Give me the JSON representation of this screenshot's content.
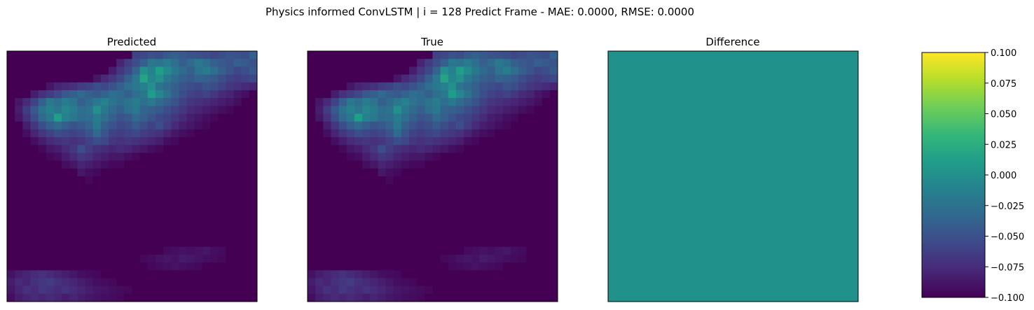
{
  "figure": {
    "suptitle": "Physics informed ConvLSTM | i = 128 Predict Frame - MAE: 0.0000, RMSE: 0.0000"
  },
  "colors": {
    "viridis": [
      "#440154",
      "#482878",
      "#3e4989",
      "#31688e",
      "#26828e",
      "#1f9e89",
      "#35b779",
      "#6ece58",
      "#b5de2b",
      "#fde725"
    ],
    "difference_fill": "#21918c"
  },
  "chart_data": [
    {
      "type": "heatmap",
      "title": "Predicted",
      "grid_size": [
        32,
        32
      ],
      "colormap": "viridis",
      "axis_ticks": false,
      "values_note": "",
      "cells": [
        [
          0,
          0,
          0,
          0,
          0,
          0,
          0,
          0,
          0,
          0,
          0,
          0,
          0,
          0,
          0,
          0,
          0.2,
          0.22,
          0.25,
          0.24,
          0.28,
          0.3,
          0.28,
          0.26,
          0.25,
          0.24,
          0.22,
          0.24,
          0.26,
          0.25,
          0.24,
          0.3
        ],
        [
          0,
          0,
          0,
          0,
          0,
          0,
          0,
          0,
          0,
          0,
          0,
          0,
          0,
          0,
          0.1,
          0.18,
          0.24,
          0.3,
          0.4,
          0.38,
          0.42,
          0.36,
          0.3,
          0.34,
          0.4,
          0.36,
          0.3,
          0.28,
          0.26,
          0.3,
          0.28,
          0.26
        ],
        [
          0,
          0,
          0,
          0,
          0,
          0,
          0,
          0,
          0,
          0,
          0,
          0,
          0,
          0.08,
          0.16,
          0.22,
          0.32,
          0.5,
          0.44,
          0.56,
          0.48,
          0.4,
          0.34,
          0.3,
          0.38,
          0.42,
          0.36,
          0.3,
          0.26,
          0.22,
          0.24,
          0.28
        ],
        [
          0,
          0,
          0,
          0,
          0,
          0,
          0,
          0,
          0,
          0,
          0,
          0.06,
          0.12,
          0.16,
          0.22,
          0.3,
          0.4,
          0.58,
          0.46,
          0.5,
          0.4,
          0.34,
          0.3,
          0.28,
          0.32,
          0.3,
          0.28,
          0.24,
          0.2,
          0.18,
          0.2,
          0.22
        ],
        [
          0,
          0,
          0,
          0,
          0,
          0.06,
          0.1,
          0.12,
          0.14,
          0.18,
          0.2,
          0.24,
          0.22,
          0.26,
          0.3,
          0.36,
          0.4,
          0.44,
          0.5,
          0.38,
          0.34,
          0.3,
          0.26,
          0.24,
          0.22,
          0.26,
          0.24,
          0.2,
          0.16,
          0.14,
          0.12,
          0.1
        ],
        [
          0,
          0,
          0,
          0.08,
          0.14,
          0.18,
          0.22,
          0.28,
          0.3,
          0.34,
          0.3,
          0.28,
          0.32,
          0.36,
          0.34,
          0.3,
          0.36,
          0.4,
          0.55,
          0.46,
          0.38,
          0.3,
          0.24,
          0.2,
          0.18,
          0.2,
          0.16,
          0.12,
          0.1,
          0.06,
          0.04,
          0
        ],
        [
          0,
          0.06,
          0.12,
          0.2,
          0.3,
          0.4,
          0.36,
          0.42,
          0.38,
          0.3,
          0.34,
          0.4,
          0.44,
          0.38,
          0.34,
          0.38,
          0.42,
          0.36,
          0.4,
          0.34,
          0.3,
          0.26,
          0.2,
          0.16,
          0.14,
          0.12,
          0.1,
          0.08,
          0.06,
          0.04,
          0,
          0
        ],
        [
          0,
          0.08,
          0.18,
          0.28,
          0.38,
          0.44,
          0.4,
          0.46,
          0.42,
          0.36,
          0.38,
          0.5,
          0.4,
          0.34,
          0.3,
          0.36,
          0.4,
          0.32,
          0.3,
          0.28,
          0.24,
          0.2,
          0.16,
          0.12,
          0.1,
          0.08,
          0.06,
          0.04,
          0.02,
          0,
          0,
          0
        ],
        [
          0,
          0.06,
          0.14,
          0.24,
          0.34,
          0.4,
          0.56,
          0.44,
          0.4,
          0.34,
          0.36,
          0.42,
          0.36,
          0.3,
          0.26,
          0.28,
          0.34,
          0.3,
          0.26,
          0.22,
          0.2,
          0.16,
          0.12,
          0.08,
          0.06,
          0.04,
          0.02,
          0,
          0,
          0,
          0,
          0
        ],
        [
          0,
          0,
          0.08,
          0.16,
          0.24,
          0.3,
          0.34,
          0.3,
          0.26,
          0.28,
          0.32,
          0.4,
          0.3,
          0.26,
          0.22,
          0.24,
          0.28,
          0.24,
          0.2,
          0.24,
          0.18,
          0.12,
          0.08,
          0.06,
          0.04,
          0.02,
          0,
          0,
          0,
          0,
          0,
          0
        ],
        [
          0,
          0,
          0.04,
          0.1,
          0.16,
          0.2,
          0.24,
          0.22,
          0.2,
          0.22,
          0.26,
          0.34,
          0.26,
          0.2,
          0.18,
          0.2,
          0.22,
          0.18,
          0.16,
          0.14,
          0.1,
          0.06,
          0.04,
          0.02,
          0,
          0,
          0,
          0,
          0,
          0,
          0,
          0
        ],
        [
          0,
          0,
          0,
          0.04,
          0.08,
          0.12,
          0.14,
          0.16,
          0.14,
          0.16,
          0.2,
          0.24,
          0.22,
          0.16,
          0.14,
          0.16,
          0.14,
          0.12,
          0.1,
          0.08,
          0.04,
          0.02,
          0,
          0,
          0,
          0,
          0,
          0,
          0,
          0,
          0,
          0
        ],
        [
          0,
          0,
          0,
          0,
          0.02,
          0.06,
          0.08,
          0.12,
          0.16,
          0.24,
          0.18,
          0.14,
          0.12,
          0.1,
          0.12,
          0.1,
          0.08,
          0.06,
          0.04,
          0.02,
          0,
          0,
          0,
          0,
          0,
          0,
          0,
          0,
          0,
          0,
          0,
          0
        ],
        [
          0,
          0,
          0,
          0,
          0,
          0.02,
          0.04,
          0.08,
          0.12,
          0.16,
          0.14,
          0.1,
          0.08,
          0.06,
          0.06,
          0.04,
          0.02,
          0,
          0,
          0,
          0,
          0,
          0,
          0,
          0,
          0,
          0,
          0,
          0,
          0,
          0,
          0
        ],
        [
          0,
          0,
          0,
          0,
          0,
          0,
          0,
          0.04,
          0.06,
          0.1,
          0.08,
          0.06,
          0.04,
          0.02,
          0.02,
          0,
          0,
          0,
          0,
          0,
          0,
          0,
          0,
          0,
          0,
          0,
          0,
          0,
          0,
          0,
          0,
          0
        ],
        [
          0,
          0,
          0,
          0,
          0,
          0,
          0,
          0,
          0,
          0.06,
          0.04,
          0.02,
          0,
          0,
          0,
          0,
          0,
          0,
          0,
          0,
          0,
          0,
          0,
          0,
          0,
          0,
          0,
          0,
          0,
          0,
          0,
          0
        ],
        [
          0,
          0,
          0,
          0,
          0,
          0,
          0,
          0,
          0,
          0,
          0.02,
          0,
          0,
          0,
          0,
          0,
          0,
          0,
          0,
          0,
          0,
          0,
          0,
          0,
          0,
          0,
          0,
          0,
          0,
          0,
          0,
          0
        ],
        [
          0,
          0,
          0,
          0,
          0,
          0,
          0,
          0,
          0,
          0,
          0,
          0,
          0,
          0,
          0,
          0,
          0,
          0,
          0,
          0,
          0,
          0,
          0,
          0,
          0,
          0,
          0,
          0,
          0,
          0,
          0,
          0
        ],
        [
          0,
          0,
          0,
          0,
          0,
          0,
          0,
          0,
          0,
          0,
          0,
          0,
          0,
          0,
          0,
          0,
          0,
          0,
          0,
          0,
          0,
          0,
          0,
          0,
          0,
          0,
          0,
          0,
          0,
          0,
          0,
          0
        ],
        [
          0,
          0,
          0,
          0,
          0,
          0,
          0,
          0,
          0,
          0,
          0,
          0,
          0,
          0,
          0,
          0,
          0,
          0,
          0,
          0,
          0,
          0,
          0,
          0,
          0,
          0,
          0,
          0,
          0,
          0,
          0,
          0
        ],
        [
          0,
          0,
          0,
          0,
          0,
          0,
          0,
          0,
          0,
          0,
          0,
          0,
          0,
          0,
          0,
          0,
          0,
          0,
          0,
          0,
          0,
          0,
          0,
          0,
          0,
          0,
          0,
          0,
          0,
          0,
          0,
          0
        ],
        [
          0,
          0,
          0,
          0,
          0,
          0,
          0,
          0,
          0,
          0,
          0,
          0,
          0,
          0,
          0,
          0,
          0,
          0,
          0,
          0,
          0,
          0,
          0,
          0,
          0,
          0,
          0,
          0,
          0,
          0,
          0,
          0
        ],
        [
          0,
          0,
          0,
          0,
          0,
          0,
          0,
          0,
          0,
          0,
          0,
          0,
          0,
          0,
          0,
          0,
          0,
          0,
          0,
          0,
          0,
          0,
          0,
          0,
          0,
          0,
          0,
          0,
          0,
          0,
          0,
          0
        ],
        [
          0,
          0,
          0,
          0,
          0,
          0,
          0,
          0,
          0,
          0,
          0,
          0,
          0,
          0,
          0,
          0,
          0,
          0,
          0,
          0,
          0,
          0,
          0,
          0,
          0,
          0,
          0,
          0,
          0,
          0,
          0,
          0
        ],
        [
          0,
          0,
          0,
          0,
          0,
          0,
          0,
          0,
          0,
          0,
          0,
          0,
          0,
          0,
          0,
          0,
          0,
          0,
          0,
          0,
          0,
          0,
          0,
          0,
          0,
          0,
          0,
          0,
          0,
          0,
          0,
          0
        ],
        [
          0,
          0,
          0,
          0,
          0,
          0,
          0,
          0,
          0,
          0,
          0,
          0,
          0,
          0,
          0,
          0,
          0,
          0,
          0,
          0,
          0.03,
          0.04,
          0.05,
          0.04,
          0.05,
          0.06,
          0.04,
          0.03,
          0,
          0,
          0,
          0
        ],
        [
          0,
          0,
          0,
          0,
          0,
          0,
          0,
          0,
          0,
          0,
          0,
          0,
          0,
          0,
          0,
          0,
          0,
          0.02,
          0.03,
          0.05,
          0.06,
          0.05,
          0.07,
          0.06,
          0.05,
          0.04,
          0.03,
          0.02,
          0,
          0,
          0,
          0
        ],
        [
          0,
          0,
          0,
          0,
          0,
          0,
          0,
          0,
          0,
          0,
          0,
          0,
          0,
          0,
          0,
          0,
          0,
          0,
          0.02,
          0.03,
          0.04,
          0.05,
          0.04,
          0.03,
          0.02,
          0,
          0,
          0,
          0,
          0,
          0,
          0
        ],
        [
          0.05,
          0.08,
          0.1,
          0.12,
          0.14,
          0.12,
          0.1,
          0.08,
          0.06,
          0.04,
          0.03,
          0.02,
          0,
          0,
          0,
          0,
          0,
          0,
          0,
          0,
          0,
          0,
          0,
          0,
          0,
          0,
          0,
          0,
          0,
          0,
          0,
          0
        ],
        [
          0.08,
          0.12,
          0.1,
          0.14,
          0.16,
          0.18,
          0.14,
          0.12,
          0.1,
          0.08,
          0.06,
          0.04,
          0.03,
          0.02,
          0,
          0,
          0,
          0,
          0,
          0,
          0,
          0,
          0,
          0,
          0,
          0,
          0,
          0,
          0,
          0,
          0,
          0
        ],
        [
          0.06,
          0.1,
          0.14,
          0.12,
          0.16,
          0.14,
          0.12,
          0.14,
          0.12,
          0.1,
          0.08,
          0.06,
          0.05,
          0.04,
          0.03,
          0.02,
          0,
          0,
          0,
          0,
          0,
          0,
          0,
          0,
          0,
          0,
          0,
          0,
          0,
          0,
          0,
          0
        ],
        [
          0.04,
          0.08,
          0.1,
          0.12,
          0.1,
          0.12,
          0.1,
          0.08,
          0.1,
          0.08,
          0.06,
          0.05,
          0.04,
          0.03,
          0.02,
          0,
          0,
          0,
          0,
          0,
          0,
          0,
          0,
          0,
          0,
          0,
          0,
          0,
          0,
          0,
          0,
          0
        ]
      ]
    },
    {
      "type": "heatmap",
      "title": "True",
      "grid_size": [
        32,
        32
      ],
      "colormap": "viridis",
      "axis_ticks": false,
      "same_as": "Predicted"
    },
    {
      "type": "heatmap",
      "title": "Difference",
      "grid_size": [
        32,
        32
      ],
      "colormap": "viridis",
      "axis_ticks": false,
      "uniform_value": 0.0,
      "colorbar": {
        "vmin": -0.1,
        "vmax": 0.1,
        "ticks": [
          "−0.100",
          "−0.075",
          "−0.050",
          "−0.025",
          "0.000",
          "0.025",
          "0.050",
          "0.075",
          "0.100"
        ]
      }
    }
  ]
}
